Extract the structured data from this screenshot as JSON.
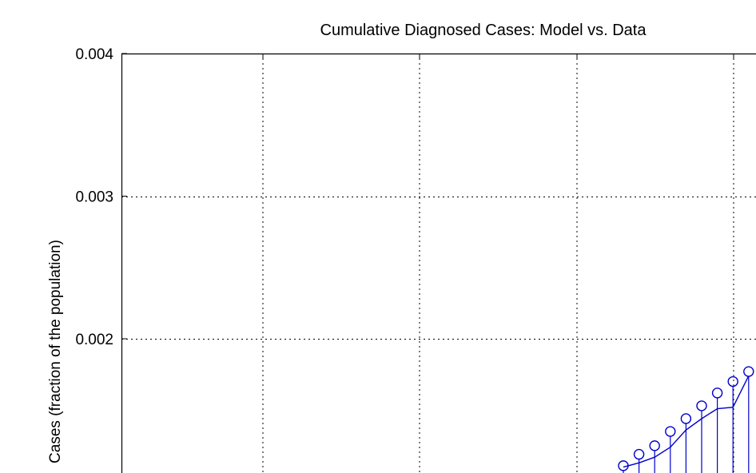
{
  "chart_data": {
    "type": "line",
    "title": "Cumulative Diagnosed Cases: Model vs. Data",
    "xlabel": "",
    "ylabel": "Cases (fraction of the population)",
    "ylim": [
      0.0011,
      0.004
    ],
    "yticks": [
      "0.002",
      "0.003",
      "0.004"
    ],
    "grid": true,
    "series": [
      {
        "style": "stem-markers",
        "color": "#0000cc",
        "x": [
          21,
          22,
          23,
          24,
          25,
          26,
          27,
          28,
          29
        ],
        "y": [
          0.00111,
          0.00119,
          0.00125,
          0.00135,
          0.00144,
          0.00153,
          0.00162,
          0.0017,
          0.00177
        ]
      },
      {
        "style": "line",
        "color": "#0000cc",
        "x": [
          21,
          22,
          23,
          24,
          25,
          26,
          27,
          28,
          29
        ],
        "y": [
          0.0011,
          0.00113,
          0.00117,
          0.00124,
          0.00136,
          0.00144,
          0.00151,
          0.00152,
          0.00174
        ]
      }
    ]
  }
}
